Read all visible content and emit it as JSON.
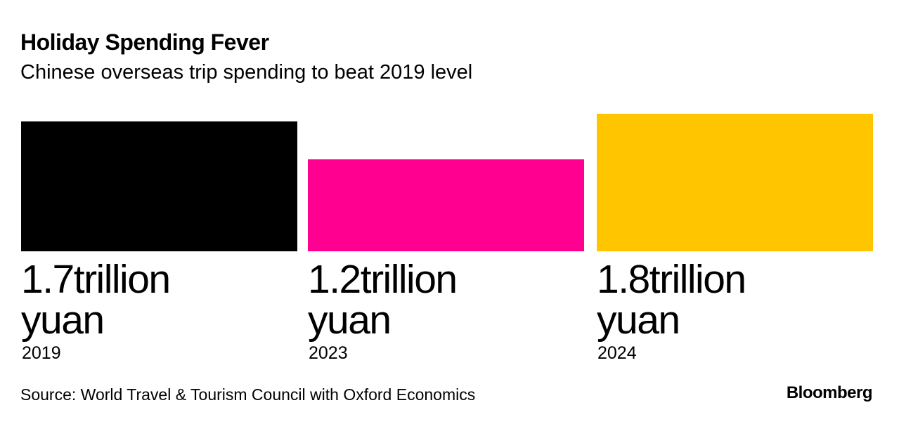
{
  "header": {
    "title": "Holiday Spending Fever",
    "subtitle": "Chinese overseas trip spending to beat 2019 level"
  },
  "chart_data": {
    "type": "bar",
    "title": "Holiday Spending Fever",
    "subtitle": "Chinese overseas trip spending to beat 2019 level",
    "categories": [
      "2019",
      "2023",
      "2024"
    ],
    "values": [
      1.7,
      1.2,
      1.8
    ],
    "value_labels": [
      "1.7trillion yuan",
      "1.2trillion yuan",
      "1.8trillion yuan"
    ],
    "unit": "trillion yuan",
    "colors": [
      "#000000",
      "#ff0090",
      "#ffc600"
    ],
    "grid": false,
    "legend": "none"
  },
  "footer": {
    "source": "Source: World Travel & Tourism Council with Oxford Economics",
    "brand": "Bloomberg"
  }
}
